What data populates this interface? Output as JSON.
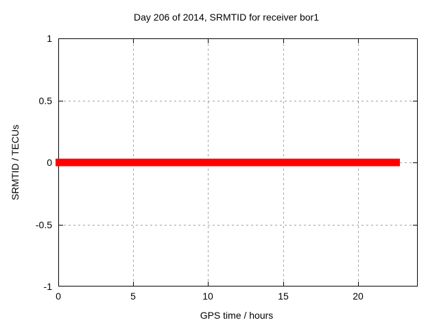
{
  "chart_data": {
    "type": "line",
    "title": "Day 206 of 2014, SRMTID for receiver bor1",
    "xlabel": "GPS time / hours",
    "ylabel": "SRMTID / TECUs",
    "xlim": [
      0,
      24
    ],
    "ylim": [
      -1,
      1
    ],
    "grid": true,
    "legend": "none",
    "xticks": [
      {
        "label": "0",
        "value": 0
      },
      {
        "label": "5",
        "value": 5
      },
      {
        "label": "10",
        "value": 10
      },
      {
        "label": "15",
        "value": 15
      },
      {
        "label": "20",
        "value": 20
      }
    ],
    "yticks": [
      {
        "label": "-1",
        "value": -1
      },
      {
        "label": "-0.5",
        "value": -0.5
      },
      {
        "label": "0",
        "value": 0
      },
      {
        "label": "0.5",
        "value": 0.5
      },
      {
        "label": "1",
        "value": 1
      }
    ],
    "series": [
      {
        "name": "SRMTID",
        "color": "#ff0000",
        "x": [
          0,
          22.8
        ],
        "y": [
          0,
          0
        ]
      }
    ]
  },
  "colors": {
    "background": "#ffffff",
    "axis": "#000000",
    "grid": "#a0a0a0",
    "text": "#000000",
    "series": "#ff0000"
  }
}
